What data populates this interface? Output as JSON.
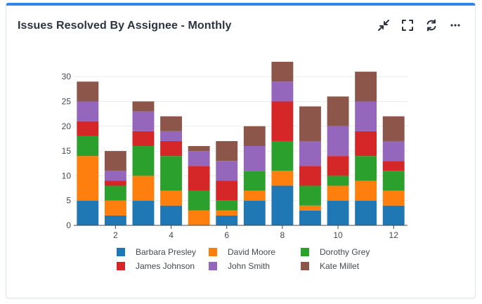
{
  "widget": {
    "title": "Issues Resolved By Assignee - Monthly",
    "toolbar": [
      {
        "name": "collapse-icon"
      },
      {
        "name": "fullscreen-icon"
      },
      {
        "name": "refresh-icon"
      },
      {
        "name": "more-icon"
      }
    ]
  },
  "chart_data": {
    "type": "bar",
    "stacked": true,
    "title": "Issues Resolved By Assignee - Monthly",
    "xlabel": "",
    "ylabel": "",
    "x": [
      1,
      2,
      3,
      4,
      5,
      6,
      7,
      8,
      9,
      10,
      11,
      12
    ],
    "xticks": [
      2,
      4,
      6,
      8,
      10,
      12
    ],
    "yticks": [
      0,
      5,
      10,
      15,
      20,
      25,
      30
    ],
    "ylim": [
      0,
      33
    ],
    "legend_position": "bottom",
    "series": [
      {
        "name": "Barbara Presley",
        "color": "#1f77b4",
        "values": [
          5,
          2,
          5,
          4,
          0,
          2,
          5,
          8,
          3,
          5,
          5,
          4
        ]
      },
      {
        "name": "David Moore",
        "color": "#ff7f0e",
        "values": [
          9,
          3,
          5,
          3,
          3,
          1,
          2,
          3,
          1,
          3,
          4,
          3
        ]
      },
      {
        "name": "Dorothy Grey",
        "color": "#2ca02c",
        "values": [
          4,
          3,
          6,
          7,
          4,
          2,
          4,
          6,
          4,
          2,
          5,
          4
        ]
      },
      {
        "name": "James Johnson",
        "color": "#d62728",
        "values": [
          3,
          1,
          3,
          3,
          5,
          4,
          0,
          8,
          4,
          4,
          5,
          2
        ]
      },
      {
        "name": "John Smith",
        "color": "#9467bd",
        "values": [
          4,
          2,
          4,
          2,
          3,
          4,
          5,
          4,
          5,
          6,
          6,
          4
        ]
      },
      {
        "name": "Kate Millet",
        "color": "#8c564b",
        "values": [
          4,
          4,
          2,
          3,
          1,
          4,
          4,
          4,
          7,
          6,
          6,
          5
        ]
      }
    ]
  }
}
